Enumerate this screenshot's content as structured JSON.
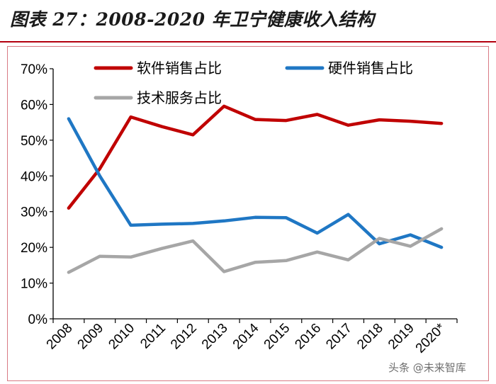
{
  "header": {
    "title": "图表 27：2008-2020 年卫宁健康收入结构"
  },
  "watermark": "头条 @未来智库",
  "chart_data": {
    "type": "line",
    "categories": [
      "2008",
      "2009",
      "2010",
      "2011",
      "2012",
      "2013",
      "2014",
      "2015",
      "2016",
      "2017",
      "2018",
      "2019",
      "2020*"
    ],
    "y_ticks": [
      "0%",
      "10%",
      "20%",
      "30%",
      "40%",
      "50%",
      "60%",
      "70%"
    ],
    "ylim": [
      0,
      70
    ],
    "grid": false,
    "legend_position": "top",
    "series": [
      {
        "name": "软件销售占比",
        "color": "#c00000",
        "values": [
          31,
          42,
          56.5,
          53.8,
          51.5,
          59.5,
          55.8,
          55.5,
          57.2,
          54.2,
          55.7,
          55.3,
          54.7
        ]
      },
      {
        "name": "硬件销售占比",
        "color": "#1f77c4",
        "values": [
          56,
          40,
          26.2,
          26.5,
          26.7,
          27.4,
          28.4,
          28.3,
          24.0,
          29.2,
          21.0,
          23.5,
          20.0
        ]
      },
      {
        "name": "技术服务占比",
        "color": "#a6a6a6",
        "values": [
          13,
          17.5,
          17.3,
          19.7,
          21.8,
          13.2,
          15.8,
          16.3,
          18.7,
          16.5,
          22.5,
          20.3,
          25.2
        ]
      }
    ]
  }
}
